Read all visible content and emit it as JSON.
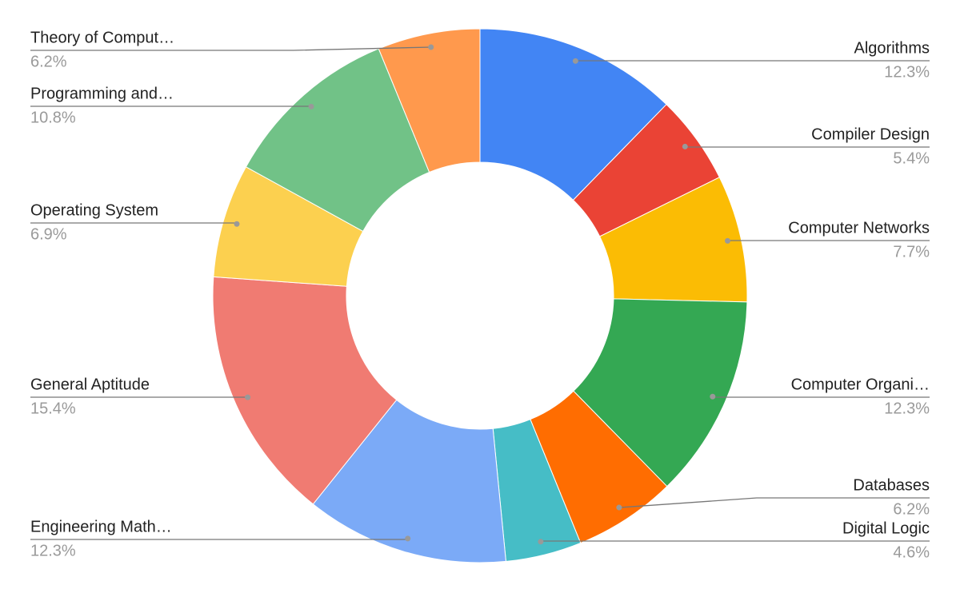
{
  "chart_data": {
    "type": "donut",
    "categories": [
      "Algorithms",
      "Compiler Design",
      "Computer Networks",
      "Computer Organi…",
      "Databases",
      "Digital Logic",
      "Engineering Math…",
      "General Aptitude",
      "Operating System",
      "Programming and…",
      "Theory of Comput…"
    ],
    "values": [
      12.3,
      5.4,
      7.7,
      12.3,
      6.2,
      4.6,
      12.3,
      15.4,
      6.9,
      10.8,
      6.2
    ],
    "value_labels": [
      "12.3%",
      "5.4%",
      "7.7%",
      "12.3%",
      "6.2%",
      "4.6%",
      "12.3%",
      "15.4%",
      "6.9%",
      "10.8%",
      "6.2%"
    ],
    "colors": [
      "#4285f4",
      "#ea4335",
      "#fbbc04",
      "#34a853",
      "#ff6d01",
      "#46bdc6",
      "#7baaf7",
      "#f07b72",
      "#fcd04f",
      "#71c287",
      "#ff994d"
    ]
  }
}
